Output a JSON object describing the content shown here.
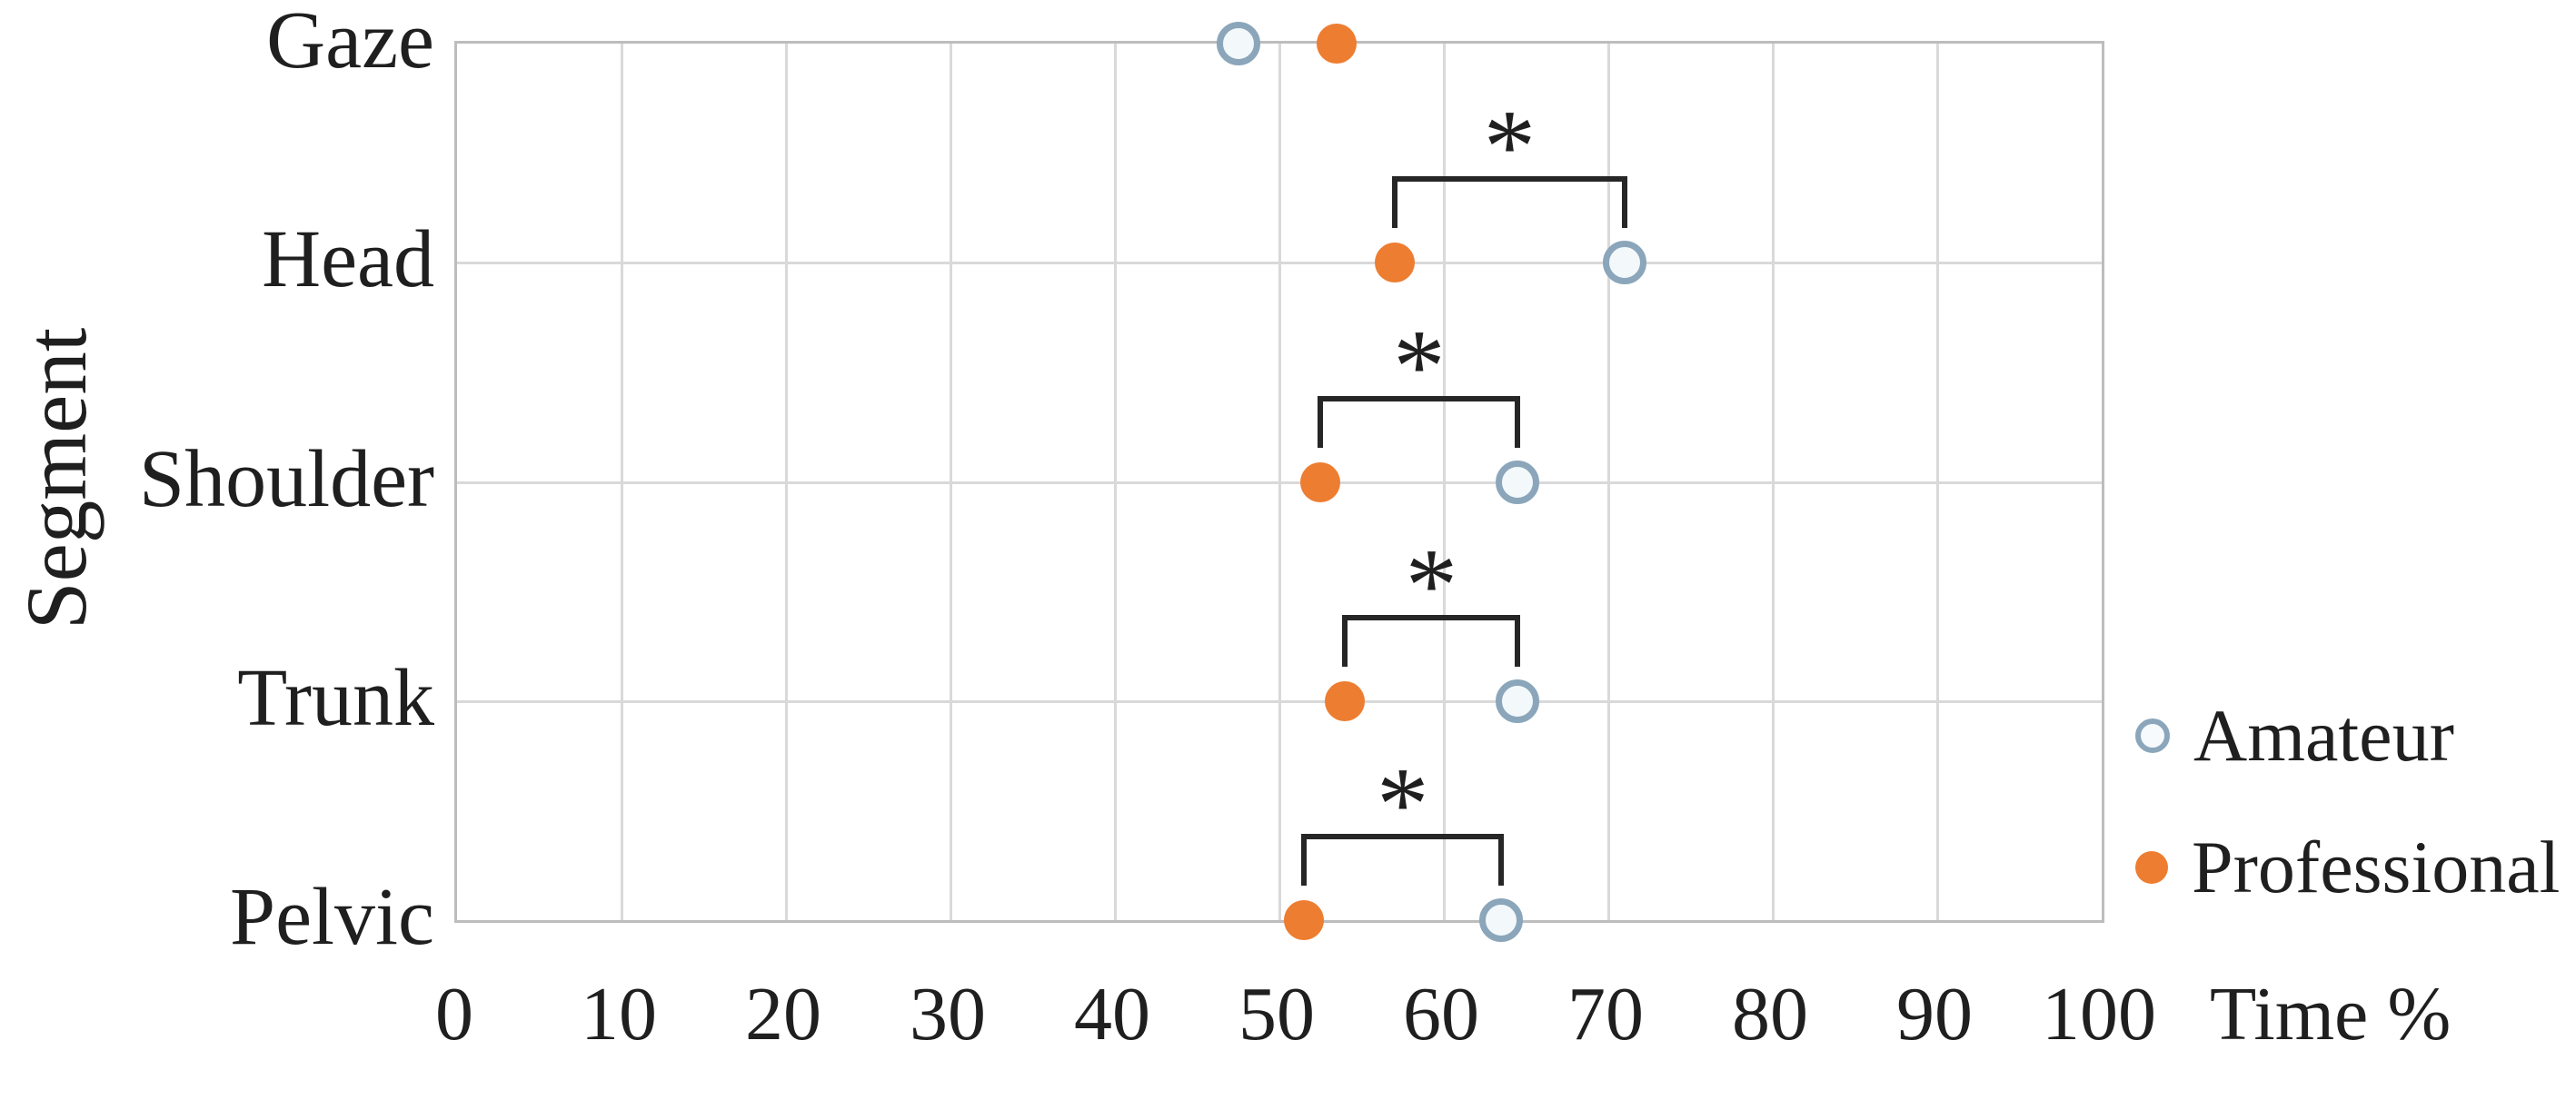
{
  "chart_data": {
    "type": "scatter",
    "orientation": "horizontal-category-dot-plot",
    "title": "",
    "xlabel": "Time %",
    "ylabel": "Segment",
    "xlim": [
      0,
      100
    ],
    "xticks": [
      0,
      10,
      20,
      30,
      40,
      50,
      60,
      70,
      80,
      90,
      100
    ],
    "grid": true,
    "legend_position": "right",
    "categories": [
      "Gaze",
      "Head",
      "Shoulder",
      "Trunk",
      "Pelvic"
    ],
    "series": [
      {
        "name": "Amateur",
        "marker": "open-circle",
        "color": "#8BA6BA",
        "values": [
          47.5,
          71,
          64.5,
          64.5,
          63.5
        ]
      },
      {
        "name": "Professional",
        "marker": "filled-circle",
        "color": "#ED7D31",
        "values": [
          53.5,
          57,
          52.5,
          54,
          51.5
        ]
      }
    ],
    "significance_markers": [
      {
        "category": "Head",
        "label": "*"
      },
      {
        "category": "Shoulder",
        "label": "*"
      },
      {
        "category": "Trunk",
        "label": "*"
      },
      {
        "category": "Pelvic",
        "label": "*"
      }
    ]
  },
  "colors": {
    "amateur_stroke": "#8BA6BA",
    "professional_fill": "#ED7D31",
    "gridline": "#d9d9d9",
    "plot_border": "#bdbdbd",
    "bracket": "#262626",
    "text": "#1f1f1f"
  }
}
